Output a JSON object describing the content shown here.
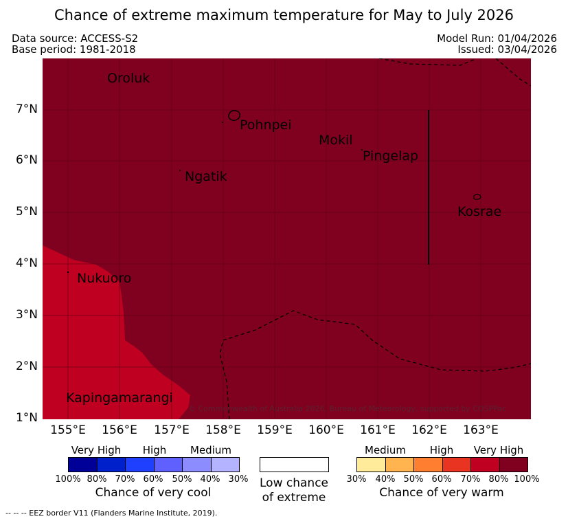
{
  "title": "Chance of extreme maximum temperature for May to July 2026",
  "header": {
    "data_source": "Data source: ACCESS-S2",
    "base_period": "Base period: 1981-2018",
    "model_run": "Model Run: 01/04/2026",
    "issued": "Issued: 03/04/2026"
  },
  "map": {
    "lat_labels": [
      "7°N",
      "6°N",
      "5°N",
      "4°N",
      "3°N",
      "2°N",
      "1°N"
    ],
    "lon_labels": [
      "155°E",
      "156°E",
      "157°E",
      "158°E",
      "159°E",
      "160°E",
      "161°E",
      "162°E",
      "163°E"
    ],
    "places": [
      "Oroluk",
      "Pohnpei",
      "Mokil",
      "Pingelap",
      "Ngatik",
      "Kosrae",
      "Nukuoro",
      "Kapingamarangi"
    ],
    "watermark": "© Commonwealth of Australia 2026, Bureau of Meteorology, supported by COSPPac",
    "colors": {
      "very_high_warm": "#800020",
      "high_warm": "#c00020"
    }
  },
  "legend": {
    "cool": {
      "categories": [
        "Very High",
        "High",
        "Medium"
      ],
      "percents": [
        "100%",
        "80%",
        "70%",
        "60%",
        "50%",
        "40%",
        "30%"
      ],
      "colors": [
        "#000099",
        "#0020cc",
        "#2040ff",
        "#6060ff",
        "#8c8cff",
        "#b3b3ff"
      ],
      "caption": "Chance of very cool"
    },
    "neutral": {
      "line1": "Low chance",
      "line2": "of extreme",
      "color": "#ffffff"
    },
    "warm": {
      "categories": [
        "Medium",
        "High",
        "Very High"
      ],
      "percents": [
        "30%",
        "40%",
        "50%",
        "60%",
        "70%",
        "80%",
        "100%"
      ],
      "colors": [
        "#ffeb99",
        "#ffb450",
        "#ff7e30",
        "#e83420",
        "#c00020",
        "#800020"
      ],
      "caption": "Chance of very warm"
    }
  },
  "footnote": "-- -- -- EEZ border V11 (Flanders Marine Institute, 2019)."
}
